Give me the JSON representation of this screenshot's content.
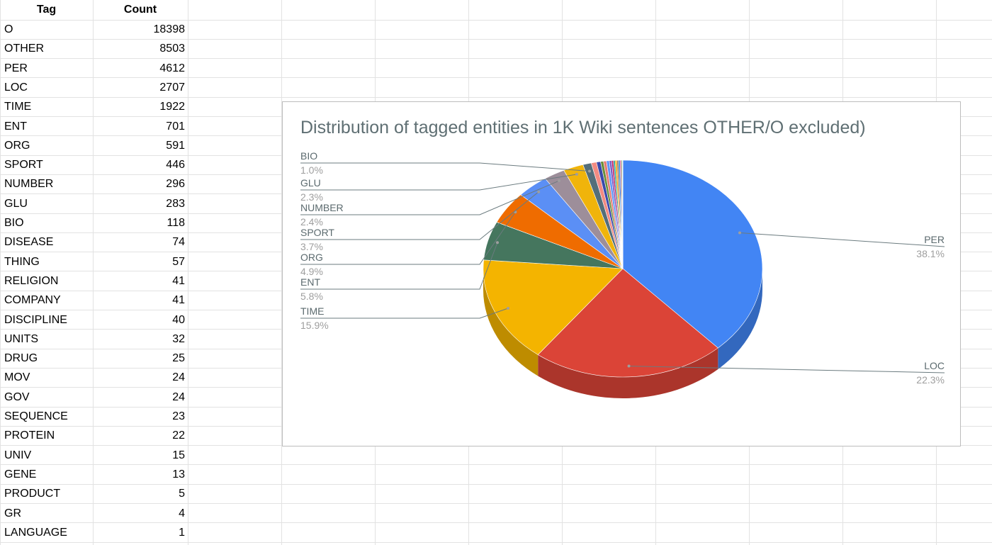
{
  "table": {
    "headers": {
      "tag": "Tag",
      "count": "Count"
    },
    "rows": [
      {
        "tag": "O",
        "count": "18398"
      },
      {
        "tag": "OTHER",
        "count": "8503"
      },
      {
        "tag": "PER",
        "count": "4612"
      },
      {
        "tag": "LOC",
        "count": "2707"
      },
      {
        "tag": "TIME",
        "count": "1922"
      },
      {
        "tag": "ENT",
        "count": "701"
      },
      {
        "tag": "ORG",
        "count": "591"
      },
      {
        "tag": "SPORT",
        "count": "446"
      },
      {
        "tag": "NUMBER",
        "count": "296"
      },
      {
        "tag": "GLU",
        "count": "283"
      },
      {
        "tag": "BIO",
        "count": "118"
      },
      {
        "tag": "DISEASE",
        "count": "74"
      },
      {
        "tag": "THING",
        "count": "57"
      },
      {
        "tag": "RELIGION",
        "count": "41"
      },
      {
        "tag": "COMPANY",
        "count": "41"
      },
      {
        "tag": "DISCIPLINE",
        "count": "40"
      },
      {
        "tag": "UNITS",
        "count": "32"
      },
      {
        "tag": "DRUG",
        "count": "25"
      },
      {
        "tag": "MOV",
        "count": "24"
      },
      {
        "tag": "GOV",
        "count": "24"
      },
      {
        "tag": "SEQUENCE",
        "count": "23"
      },
      {
        "tag": "PROTEIN",
        "count": "22"
      },
      {
        "tag": "UNIV",
        "count": "15"
      },
      {
        "tag": "GENE",
        "count": "13"
      },
      {
        "tag": "PRODUCT",
        "count": "5"
      },
      {
        "tag": "GR",
        "count": "4"
      },
      {
        "tag": "LANGUAGE",
        "count": "1"
      }
    ]
  },
  "chart_data": {
    "type": "pie",
    "title": "Distribution of tagged entities in 1K Wiki sentences OTHER/O excluded)",
    "categories": [
      "PER",
      "LOC",
      "TIME",
      "ENT",
      "ORG",
      "SPORT",
      "NUMBER",
      "GLU",
      "BIO",
      "DISEASE",
      "THING",
      "RELIGION",
      "COMPANY",
      "DISCIPLINE",
      "UNITS",
      "DRUG",
      "MOV",
      "GOV",
      "SEQUENCE",
      "PROTEIN",
      "UNIV",
      "GENE",
      "PRODUCT",
      "GR",
      "LANGUAGE"
    ],
    "values": [
      4612,
      2707,
      1922,
      701,
      591,
      446,
      296,
      283,
      118,
      74,
      57,
      41,
      41,
      40,
      32,
      25,
      24,
      24,
      23,
      22,
      15,
      13,
      5,
      4,
      1
    ],
    "colors": [
      "#4285f4",
      "#db4437",
      "#f4b400",
      "#45765e",
      "#ef6c00",
      "#5b8ff5",
      "#9d8e9a",
      "#f0b40b",
      "#546e7a",
      "#f28b82",
      "#3949ab",
      "#6a8f3a",
      "#e67c73",
      "#5e97f6",
      "#7e57c2",
      "#c2185b",
      "#26a69a",
      "#ffa000",
      "#8d6e63",
      "#1e88e5",
      "#d81b60",
      "#43a047",
      "#fb8c00",
      "#5c6bc0",
      "#00acc1"
    ],
    "labels": [
      {
        "name": "PER",
        "pct": "38.1%"
      },
      {
        "name": "LOC",
        "pct": "22.3%"
      },
      {
        "name": "TIME",
        "pct": "15.9%"
      },
      {
        "name": "ENT",
        "pct": "5.8%"
      },
      {
        "name": "ORG",
        "pct": "4.9%"
      },
      {
        "name": "SPORT",
        "pct": "3.7%"
      },
      {
        "name": "NUMBER",
        "pct": "2.4%"
      },
      {
        "name": "GLU",
        "pct": "2.3%"
      },
      {
        "name": "BIO",
        "pct": "1.0%"
      }
    ],
    "is_3d": true,
    "legend": "none"
  }
}
